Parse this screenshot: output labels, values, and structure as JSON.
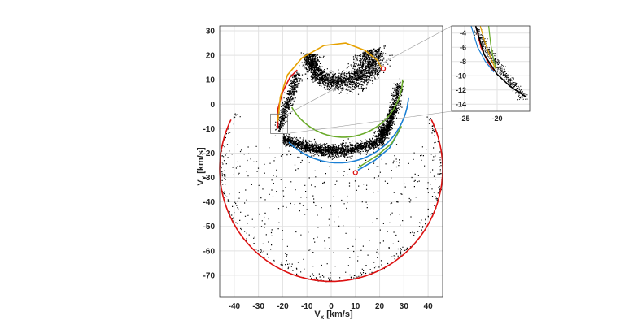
{
  "chart_data": {
    "type": "scatter",
    "title": "",
    "xlabel": "V",
    "xlabel_sub": "x",
    "xlabel_units": "[km/s]",
    "ylabel": "V",
    "ylabel_sub": "y",
    "ylabel_units": "[km/s]",
    "xlim": [
      -46,
      46
    ],
    "ylim": [
      -79,
      32
    ],
    "xticks": [
      -40,
      -30,
      -20,
      -10,
      0,
      10,
      20,
      30,
      40
    ],
    "yticks": [
      30,
      20,
      10,
      0,
      -10,
      -20,
      -30,
      -40,
      -50,
      -60,
      -70
    ],
    "grid": true,
    "colors": {
      "red": "#dd1111",
      "blue": "#1a7fd4",
      "green": "#6aab2a",
      "orange": "#e6a100",
      "points": "#000000",
      "grid": "#e2e2e2",
      "axes": "#333333"
    },
    "curves": [
      {
        "name": "outer-circle",
        "color": "red",
        "type": "arc",
        "center": [
          0,
          -26.5
        ],
        "r": 46,
        "from": 154,
        "to": 386
      },
      {
        "name": "red-inner-arc",
        "color": "red",
        "type": "polyline",
        "points": [
          [
            -22,
            -10
          ],
          [
            -22,
            -2
          ],
          [
            -20,
            5
          ],
          [
            -17,
            11
          ],
          [
            -14,
            14
          ]
        ]
      },
      {
        "name": "blue-arc",
        "color": "blue",
        "type": "arc",
        "center": [
          3,
          5
        ],
        "r": 29,
        "from": 225,
        "to": 355
      },
      {
        "name": "blue-lower-arc",
        "color": "blue",
        "type": "polyline",
        "points": [
          [
            11,
            -27
          ],
          [
            18,
            -23
          ],
          [
            24,
            -18
          ],
          [
            28,
            -11
          ]
        ]
      },
      {
        "name": "green-arc",
        "color": "green",
        "type": "arc",
        "center": [
          5,
          11
        ],
        "r": 24.5,
        "from": 210,
        "to": 358
      },
      {
        "name": "green-lower-arc",
        "color": "green",
        "type": "polyline",
        "points": [
          [
            11,
            -26
          ],
          [
            19,
            -21
          ],
          [
            25,
            -16
          ],
          [
            29,
            -9
          ]
        ]
      },
      {
        "name": "orange-arc",
        "color": "orange",
        "type": "polyline",
        "points": [
          [
            -22,
            -7
          ],
          [
            -21,
            3
          ],
          [
            -18,
            12
          ],
          [
            -12,
            19
          ],
          [
            -3,
            24
          ],
          [
            6,
            25
          ],
          [
            14,
            22
          ],
          [
            19,
            18
          ],
          [
            21,
            14.5
          ]
        ]
      }
    ],
    "markers": [
      {
        "name": "upper-marker",
        "x": 21.5,
        "y": 14.5,
        "color": "red"
      },
      {
        "name": "lower-marker",
        "x": 10,
        "y": -28,
        "color": "red"
      }
    ],
    "zoom_box": {
      "x": [
        -25,
        -18
      ],
      "y": [
        -12,
        -4
      ]
    },
    "inset": {
      "xlim": [
        -27,
        -15
      ],
      "ylim": [
        -15,
        -3
      ],
      "xticks": [
        -25,
        -20
      ],
      "yticks": [
        -4,
        -6,
        -8,
        -10,
        -12,
        -14
      ]
    }
  }
}
